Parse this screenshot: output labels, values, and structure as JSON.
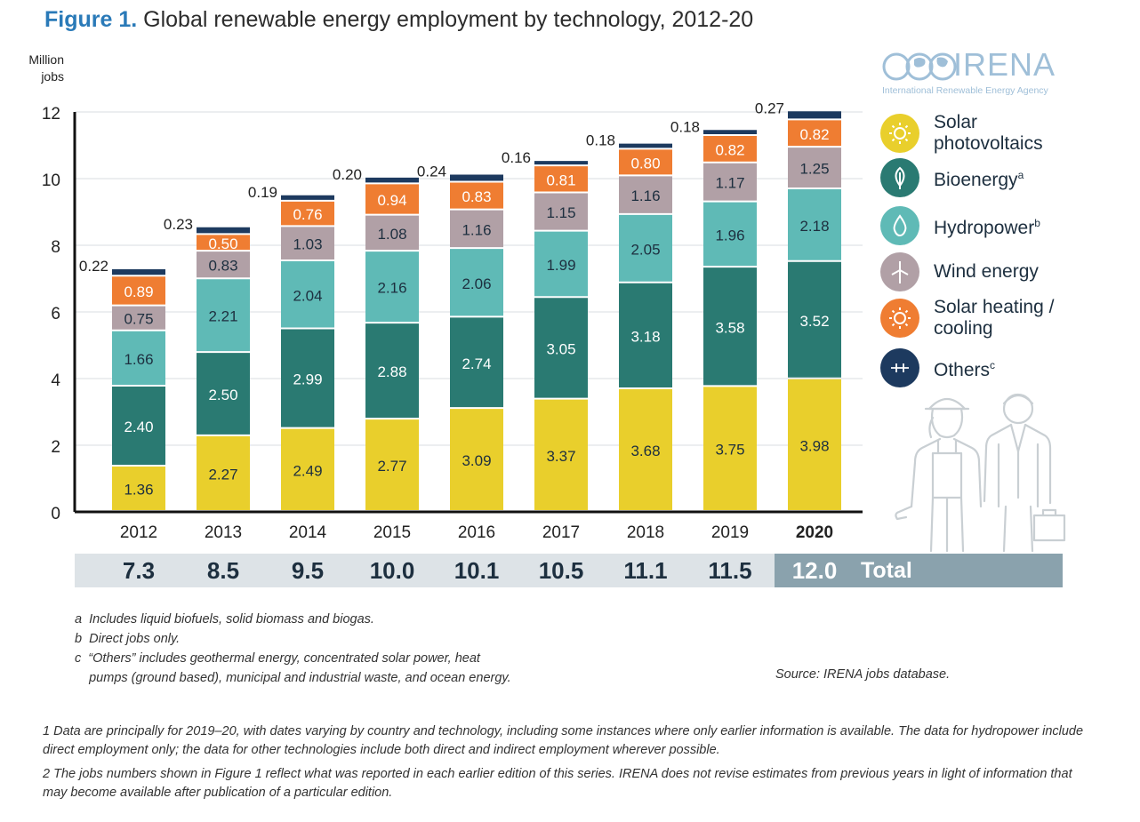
{
  "title": {
    "label": "Figure 1.",
    "text": "Global renewable energy employment by technology, 2012-20"
  },
  "unit_label": [
    "Million",
    "jobs"
  ],
  "logo": {
    "name": "IRENA",
    "subtitle": "International Renewable Energy Agency"
  },
  "colors": {
    "solar_pv": "#e9cf2c",
    "bioenergy": "#2a7a72",
    "hydropower": "#5fbab6",
    "wind": "#b1a0a6",
    "solar_heating": "#ef7d32",
    "others": "#1d3a5f"
  },
  "legend": [
    {
      "key": "solar_pv",
      "label_lines": [
        "Solar",
        "photovoltaics"
      ],
      "sup": "",
      "icon": "sun-icon"
    },
    {
      "key": "bioenergy",
      "label_lines": [
        "Bioenergy"
      ],
      "sup": "a",
      "icon": "leaf-icon"
    },
    {
      "key": "hydropower",
      "label_lines": [
        "Hydropower"
      ],
      "sup": "b",
      "icon": "water-drop-icon"
    },
    {
      "key": "wind",
      "label_lines": [
        "Wind energy"
      ],
      "sup": "",
      "icon": "wind-turbine-icon"
    },
    {
      "key": "solar_heating",
      "label_lines": [
        "Solar heating /",
        "cooling"
      ],
      "sup": "",
      "icon": "sun-heating-icon"
    },
    {
      "key": "others",
      "label_lines": [
        "Others"
      ],
      "sup": "c",
      "icon": "others-icon"
    }
  ],
  "chart_data": {
    "type": "bar",
    "stacked": true,
    "categories": [
      "2012",
      "2013",
      "2014",
      "2015",
      "2016",
      "2017",
      "2018",
      "2019",
      "2020"
    ],
    "highlight_category": "2020",
    "ylim": [
      0,
      12
    ],
    "yticks": [
      0,
      2,
      4,
      6,
      8,
      10,
      12
    ],
    "series": [
      {
        "name": "Solar photovoltaics",
        "key": "solar_pv",
        "values": [
          1.36,
          2.27,
          2.49,
          2.77,
          3.09,
          3.37,
          3.68,
          3.75,
          3.98
        ]
      },
      {
        "name": "Bioenergy",
        "key": "bioenergy",
        "values": [
          2.4,
          2.5,
          2.99,
          2.88,
          2.74,
          3.05,
          3.18,
          3.58,
          3.52
        ]
      },
      {
        "name": "Hydropower",
        "key": "hydropower",
        "values": [
          1.66,
          2.21,
          2.04,
          2.16,
          2.06,
          1.99,
          2.05,
          1.96,
          2.18
        ]
      },
      {
        "name": "Wind energy",
        "key": "wind",
        "values": [
          0.75,
          0.83,
          1.03,
          1.08,
          1.16,
          1.15,
          1.16,
          1.17,
          1.25
        ]
      },
      {
        "name": "Solar heating / cooling",
        "key": "solar_heating",
        "values": [
          0.89,
          0.5,
          0.76,
          0.94,
          0.83,
          0.81,
          0.8,
          0.82,
          0.82
        ]
      },
      {
        "name": "Others",
        "key": "others",
        "values": [
          0.22,
          0.23,
          0.19,
          0.2,
          0.24,
          0.16,
          0.18,
          0.18,
          0.27
        ]
      }
    ],
    "labels": {
      "solar_pv": [
        "1.36",
        "2.27",
        "2.49",
        "2.77",
        "3.09",
        "3.37",
        "3.68",
        "3.75",
        "3.98"
      ],
      "bioenergy": [
        "2.40",
        "2.50",
        "2.99",
        "2.88",
        "2.74",
        "3.05",
        "3.18",
        "3.58",
        "3.52"
      ],
      "hydropower": [
        "1.66",
        "2.21",
        "2.04",
        "2.16",
        "2.06",
        "1.99",
        "2.05",
        "1.96",
        "2.18"
      ],
      "wind": [
        "0.75",
        "0.83",
        "1.03",
        "1.08",
        "1.16",
        "1.15",
        "1.16",
        "1.17",
        "1.25"
      ],
      "solar_heating": [
        "0.89",
        "0.50",
        "0.76",
        "0.94",
        "0.83",
        "0.81",
        "0.80",
        "0.82",
        "0.82"
      ],
      "others": [
        "0.22",
        "0.23",
        "0.19",
        "0.20",
        "0.24",
        "0.16",
        "0.18",
        "0.18",
        "0.27"
      ]
    },
    "totals": [
      "7.3",
      "8.5",
      "9.5",
      "10.0",
      "10.1",
      "10.5",
      "11.1",
      "11.5",
      "12.0"
    ],
    "totals_label": "Total",
    "grid": true
  },
  "notes": [
    "a  Includes liquid biofuels, solid biomass and biogas.",
    "b  Direct jobs only.",
    "c  “Others” includes geothermal energy, concentrated solar power, heat",
    "    pumps (ground based), municipal and industrial waste, and ocean energy."
  ],
  "source": "Source: IRENA jobs database.",
  "footnotes": [
    "1  Data are principally for 2019–20, with dates varying by country and technology, including some instances where only earlier information is available. The data for hydropower include direct employment only; the data for other technologies include both direct and indirect employment wherever possible.",
    "2 The jobs numbers shown in Figure 1 reflect what was reported in each earlier edition of this series. IRENA does not revise estimates from previous years in light of information that may become available after publication of a particular edition."
  ]
}
